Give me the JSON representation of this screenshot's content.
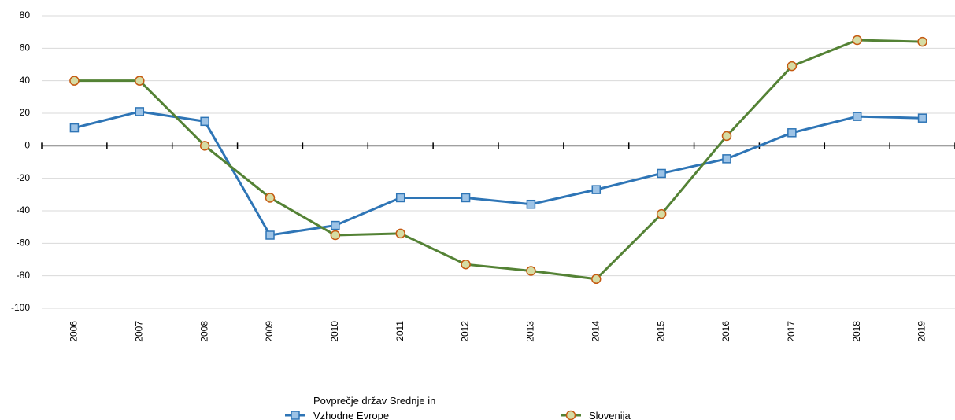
{
  "chart_data": {
    "type": "line",
    "categories": [
      "2006",
      "2007",
      "2008",
      "2009",
      "2010",
      "2011",
      "2012",
      "2013",
      "2014",
      "2015",
      "2016",
      "2017",
      "2018",
      "2019"
    ],
    "series": [
      {
        "name": "Povprečje držav Srednje in Vzhodne Evrope",
        "color": "#2e75b6",
        "marker": "square",
        "values": [
          11,
          21,
          15,
          -55,
          -49,
          -32,
          -32,
          -36,
          -27,
          -17,
          -8,
          8,
          18,
          17
        ]
      },
      {
        "name": "Slovenija",
        "color": "#548235",
        "marker": "circle",
        "values": [
          40,
          40,
          0,
          -32,
          -55,
          -54,
          -73,
          -77,
          -82,
          -42,
          6,
          49,
          65,
          64
        ]
      }
    ],
    "ylim": [
      -100,
      80
    ],
    "yticks": [
      -100,
      -80,
      -60,
      -40,
      -20,
      0,
      20,
      40,
      60,
      80
    ],
    "grid": true,
    "legend": "bottom"
  }
}
